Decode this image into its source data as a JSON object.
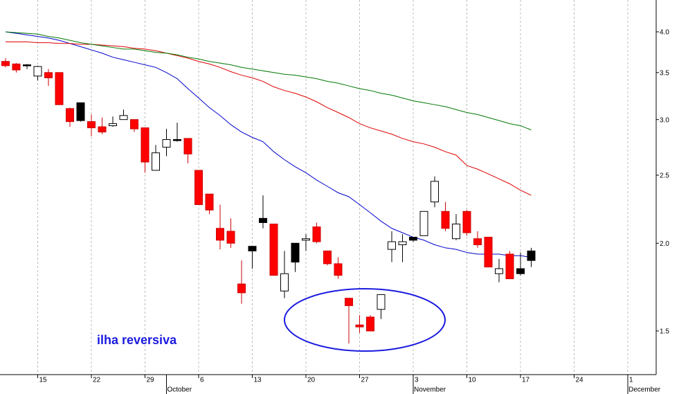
{
  "chart_data": {
    "type": "candlestick",
    "log_scale": true,
    "grid": true,
    "annotation": "ilha reversiva",
    "ylim": [
      1.3,
      4.44
    ],
    "yticks": [
      {
        "value": 1.5,
        "label": "1.5"
      },
      {
        "value": 2,
        "label": "2.0"
      },
      {
        "value": 2.5,
        "label": "2.5"
      },
      {
        "value": 3,
        "label": "3.0"
      },
      {
        "value": 3.5,
        "label": "3.5"
      },
      {
        "value": 4,
        "label": "4.0"
      }
    ],
    "categories": [
      null,
      null,
      null,
      "15",
      null,
      null,
      null,
      null,
      "22",
      null,
      null,
      null,
      null,
      "29",
      null,
      null,
      null,
      null,
      "6",
      null,
      null,
      null,
      null,
      "13",
      null,
      null,
      null,
      null,
      "20",
      null,
      null,
      null,
      null,
      "27",
      null,
      null,
      null,
      null,
      "3",
      null,
      null,
      null,
      null,
      "10",
      null,
      null,
      null,
      null,
      "17",
      null,
      null,
      null,
      null,
      "24",
      null,
      null,
      null,
      null,
      "1",
      null,
      null
    ],
    "months": [
      null,
      null,
      null,
      null,
      null,
      null,
      null,
      null,
      null,
      null,
      null,
      null,
      null,
      null,
      null,
      "October",
      null,
      null,
      null,
      null,
      null,
      null,
      null,
      null,
      null,
      null,
      null,
      null,
      null,
      null,
      null,
      null,
      null,
      null,
      null,
      null,
      null,
      null,
      "November",
      null,
      null,
      null,
      null,
      null,
      null,
      null,
      null,
      null,
      null,
      null,
      null,
      null,
      null,
      null,
      null,
      null,
      null,
      null,
      "December",
      null,
      null
    ],
    "open": [
      3.63,
      3.6,
      3.58,
      3.46,
      3.5,
      3.5,
      3.11,
      2.99,
      2.98,
      2.93,
      2.94,
      3.0,
      3.0,
      2.92,
      2.54,
      2.74,
      2.8,
      2.82,
      2.54,
      2.35,
      2.1,
      2.08,
      1.75,
      1.95,
      2.14,
      2.13,
      1.71,
      1.88,
      2.02,
      2.11,
      1.95,
      1.87,
      1.67,
      1.53,
      1.57,
      1.61,
      1.96,
      1.99,
      2.02,
      2.05,
      2.29,
      2.22,
      2.03,
      2.22,
      2.03,
      2.04,
      1.81,
      1.93,
      1.81,
      1.89,
      null,
      null,
      null,
      null,
      null,
      null,
      null,
      null,
      null,
      null,
      null
    ],
    "high": [
      3.67,
      3.61,
      3.6,
      3.58,
      3.54,
      3.5,
      3.12,
      3.17,
      3.05,
      3.02,
      3.03,
      3.1,
      3.0,
      2.92,
      2.76,
      2.91,
      2.97,
      2.82,
      2.54,
      2.35,
      2.27,
      2.17,
      1.89,
      1.98,
      2.34,
      2.13,
      1.95,
      2.0,
      2.06,
      2.14,
      1.95,
      1.91,
      1.67,
      1.58,
      1.58,
      1.69,
      2.08,
      2.06,
      2.04,
      2.22,
      2.49,
      2.29,
      2.2,
      2.23,
      2.08,
      2.04,
      1.9,
      1.95,
      1.94,
      1.97,
      null,
      null,
      null,
      null,
      null,
      null,
      null,
      null,
      null,
      null,
      null
    ],
    "low": [
      3.56,
      3.5,
      3.54,
      3.41,
      3.35,
      3.15,
      2.93,
      2.98,
      2.84,
      2.86,
      2.93,
      3.0,
      2.88,
      2.52,
      2.54,
      2.66,
      2.79,
      2.6,
      2.27,
      2.2,
      1.96,
      1.97,
      1.64,
      1.84,
      2.1,
      1.8,
      1.67,
      1.82,
      1.95,
      2.0,
      1.86,
      1.78,
      1.44,
      1.49,
      1.5,
      1.56,
      1.88,
      1.88,
      2.01,
      2.05,
      2.25,
      2.08,
      2.02,
      2.05,
      1.97,
      1.85,
      1.76,
      1.78,
      1.8,
      1.85,
      null,
      null,
      null,
      null,
      null,
      null,
      null,
      null,
      null,
      null,
      null
    ],
    "close": [
      3.58,
      3.53,
      3.59,
      3.57,
      3.44,
      3.15,
      2.98,
      3.17,
      2.92,
      2.88,
      2.96,
      3.04,
      2.91,
      2.61,
      2.69,
      2.81,
      2.81,
      2.68,
      2.27,
      2.23,
      2.02,
      2.0,
      1.7,
      1.98,
      2.17,
      1.8,
      1.81,
      2.0,
      2.03,
      2.01,
      1.87,
      1.8,
      1.63,
      1.52,
      1.5,
      1.69,
      2.01,
      2.01,
      2.04,
      2.22,
      2.45,
      2.1,
      2.13,
      2.07,
      1.99,
      1.85,
      1.84,
      1.78,
      1.84,
      1.95,
      null,
      null,
      null,
      null,
      null,
      null,
      null,
      null,
      null,
      null,
      null
    ],
    "candle_colors": [
      "#ff0000",
      "#ff0000",
      "#000000",
      "#ffffff",
      "#ff0000",
      "#ff0000",
      "#ff0000",
      "#000000",
      "#ff0000",
      "#ff0000",
      "#ffffff",
      "#ffffff",
      "#ff0000",
      "#ff0000",
      "#ffffff",
      "#ffffff",
      "#000000",
      "#ff0000",
      "#ff0000",
      "#ff0000",
      "#ff0000",
      "#ff0000",
      "#ff0000",
      "#000000",
      "#000000",
      "#ff0000",
      "#ffffff",
      "#000000",
      "#ffffff",
      "#ff0000",
      "#ff0000",
      "#ff0000",
      "#ff0000",
      "#ff0000",
      "#ff0000",
      "#ffffff",
      "#ffffff",
      "#ffffff",
      "#000000",
      "#ffffff",
      "#ffffff",
      "#ff0000",
      "#ffffff",
      "#ff0000",
      "#ff0000",
      "#ff0000",
      "#ffffff",
      "#ff0000",
      "#000000",
      "#000000",
      null,
      null,
      null,
      null,
      null,
      null,
      null,
      null,
      null,
      null,
      null
    ],
    "lines": [
      {
        "color": "#0000cc",
        "values": [
          4.0,
          3.98,
          3.96,
          3.94,
          3.92,
          3.89,
          3.85,
          3.81,
          3.77,
          3.73,
          3.68,
          3.65,
          3.62,
          3.59,
          3.56,
          3.5,
          3.43,
          3.32,
          3.22,
          3.12,
          3.04,
          2.95,
          2.88,
          2.83,
          2.79,
          2.7,
          2.63,
          2.57,
          2.52,
          2.46,
          2.41,
          2.36,
          2.33,
          2.27,
          2.21,
          2.15,
          2.1,
          2.07,
          2.04,
          2.02,
          1.99,
          1.97,
          1.96,
          1.94,
          1.93,
          1.93,
          1.93,
          1.92,
          1.92,
          1.91,
          null,
          null,
          null,
          null,
          null,
          null,
          null,
          null,
          null,
          null,
          null
        ]
      },
      {
        "color": "#dd0000",
        "values": [
          3.87,
          3.87,
          3.87,
          3.86,
          3.86,
          3.85,
          3.85,
          3.84,
          3.84,
          3.83,
          3.82,
          3.81,
          3.79,
          3.78,
          3.76,
          3.73,
          3.7,
          3.67,
          3.63,
          3.6,
          3.56,
          3.51,
          3.47,
          3.44,
          3.4,
          3.34,
          3.3,
          3.27,
          3.23,
          3.18,
          3.12,
          3.07,
          3.02,
          2.96,
          2.92,
          2.89,
          2.86,
          2.82,
          2.79,
          2.77,
          2.74,
          2.7,
          2.67,
          2.58,
          2.55,
          2.51,
          2.47,
          2.43,
          2.38,
          2.34,
          null,
          null,
          null,
          null,
          null,
          null,
          null,
          null,
          null,
          null,
          null
        ]
      },
      {
        "color": "#007700",
        "values": [
          4.0,
          3.99,
          3.98,
          3.97,
          3.94,
          3.92,
          3.89,
          3.86,
          3.84,
          3.82,
          3.8,
          3.78,
          3.78,
          3.76,
          3.74,
          3.73,
          3.71,
          3.68,
          3.66,
          3.63,
          3.61,
          3.59,
          3.56,
          3.54,
          3.52,
          3.5,
          3.48,
          3.47,
          3.45,
          3.43,
          3.4,
          3.38,
          3.35,
          3.32,
          3.3,
          3.27,
          3.25,
          3.22,
          3.19,
          3.17,
          3.15,
          3.13,
          3.1,
          3.07,
          3.05,
          3.02,
          2.99,
          2.96,
          2.94,
          2.9,
          null,
          null,
          null,
          null,
          null,
          null,
          null,
          null,
          null,
          null,
          null
        ]
      }
    ]
  }
}
